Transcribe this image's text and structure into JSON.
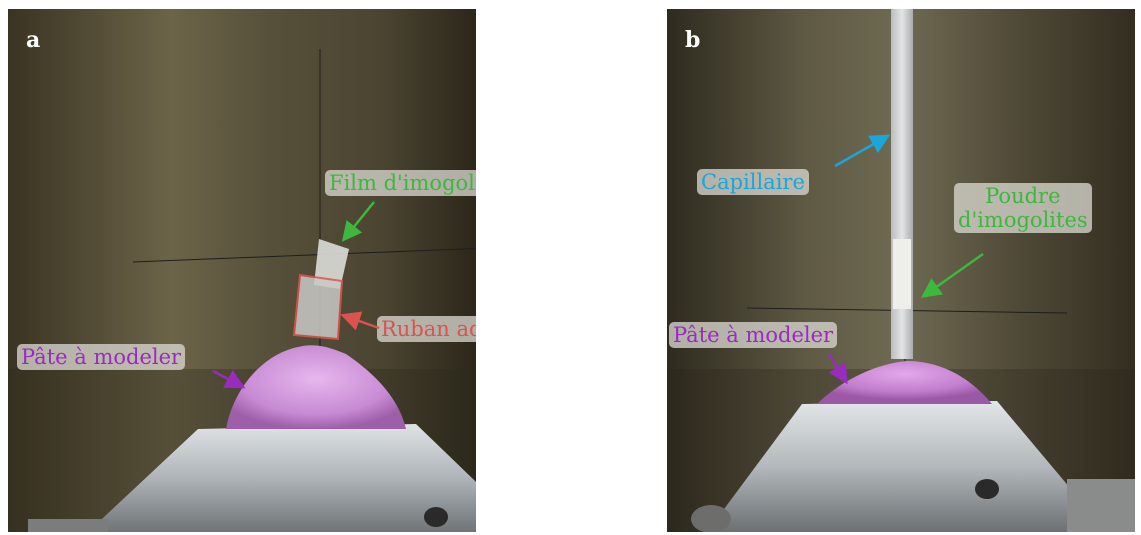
{
  "panels": [
    {
      "letter": "a",
      "labels": {
        "film": "Film d'imogolites",
        "tape": "Ruban adhésif",
        "clay": "Pâte à modeler"
      }
    },
    {
      "letter": "b",
      "labels": {
        "capillary": "Capillaire",
        "powder_line1": "Poudre",
        "powder_line2": "d'imogolites",
        "clay": "Pâte à modeler"
      }
    }
  ],
  "colors": {
    "film": "#3cb83c",
    "tape": "#d9534f",
    "clay": "#9a2bbf",
    "capillary": "#1aa6d8",
    "powder": "#3cb83c"
  }
}
